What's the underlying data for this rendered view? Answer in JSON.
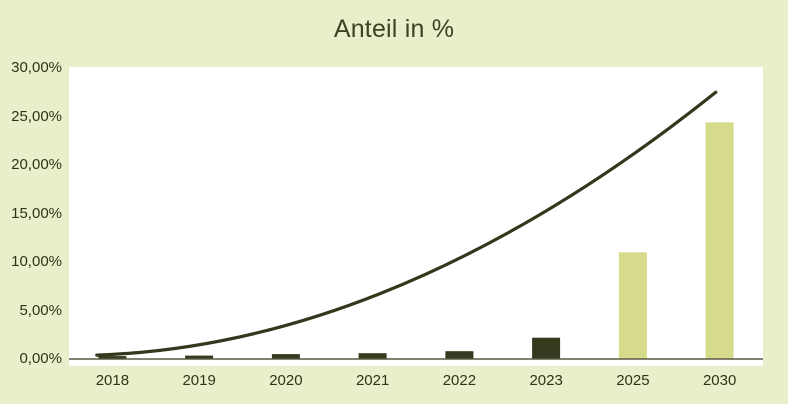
{
  "chart_data": {
    "type": "bar",
    "title": "Anteil in %",
    "xlabel": "",
    "ylabel": "",
    "categories": [
      "2018",
      "2019",
      "2020",
      "2021",
      "2022",
      "2023",
      "2025",
      "2030"
    ],
    "values": [
      0.3,
      0.35,
      0.5,
      0.6,
      0.8,
      2.2,
      11.0,
      24.4
    ],
    "bar_styles": [
      "dark",
      "dark",
      "dark",
      "dark",
      "dark",
      "dark",
      "light",
      "light"
    ],
    "y_ticks": [
      {
        "value": 30,
        "label": "30,00%"
      },
      {
        "value": 25,
        "label": "25,00%"
      },
      {
        "value": 20,
        "label": "20,00%"
      },
      {
        "value": 15,
        "label": "15,00%"
      },
      {
        "value": 10,
        "label": "10,00%"
      },
      {
        "value": 5,
        "label": "5,00%"
      },
      {
        "value": 0,
        "label": "0,00%"
      }
    ],
    "ylim": [
      0,
      30
    ],
    "grid": "off",
    "legend": "none",
    "trendline": {
      "shape": "quadratic-bezier",
      "points": [
        {
          "x_frac": 0.04,
          "value": 0.4
        },
        {
          "x_frac": 0.476,
          "value": 1.45
        },
        {
          "x_frac": 0.932,
          "value": 27.5
        }
      ]
    },
    "colors": {
      "background": "#e9eecb",
      "plot_background": "#ffffff",
      "bar_dark": "#343a1e",
      "bar_light": "#d6db8c",
      "trendline": "#32381c",
      "title_text": "#3a4323",
      "axis_text": "#2f3418",
      "axis_line": "#595943"
    }
  }
}
